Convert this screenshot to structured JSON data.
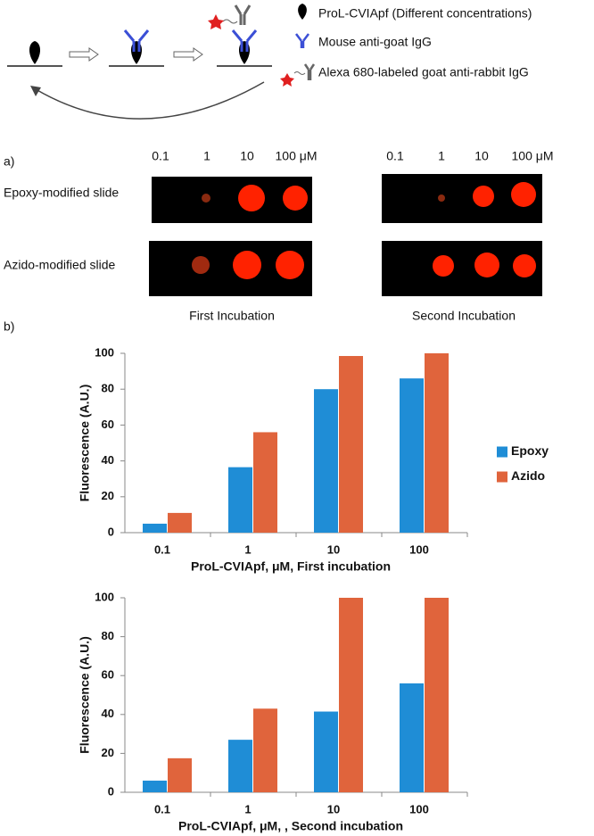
{
  "diagram": {
    "legend": [
      "ProL-CVIApf (Different concentrations)",
      "Mouse anti-goat IgG",
      "Alexa 680-labeled goat anti-rabbit IgG"
    ]
  },
  "panel_a": {
    "label": "a)",
    "first_concentrations": [
      "0.1",
      "1",
      "10",
      "100 μM"
    ],
    "second_concentrations": [
      "0.1",
      "1",
      "10",
      "100 μM"
    ],
    "rows": [
      "Epoxy-modified slide",
      "Azido-modified slide"
    ],
    "columns": [
      "First Incubation",
      "Second Incubation"
    ]
  },
  "panel_b": {
    "label": "b)"
  },
  "chart_data": [
    {
      "type": "bar",
      "xlabel": "ProL-CVIApf, μM, First incubation",
      "ylabel": "Fluorescence  (A.U.)",
      "categories": [
        "0.1",
        "1",
        "10",
        "100"
      ],
      "series": [
        {
          "name": "Epoxy",
          "color": "#1f8dd6",
          "values": [
            5,
            36.5,
            80,
            86
          ]
        },
        {
          "name": "Azido",
          "color": "#e0643c",
          "values": [
            11,
            56,
            98.5,
            100
          ]
        }
      ],
      "ylim": [
        0,
        100
      ],
      "yticks": [
        0,
        20,
        40,
        60,
        80,
        100
      ],
      "legend": "right"
    },
    {
      "type": "bar",
      "xlabel": "ProL-CVIApf, μM, , Second incubation",
      "ylabel": "Fluorescence  (A.U.)",
      "categories": [
        "0.1",
        "1",
        "10",
        "100"
      ],
      "series": [
        {
          "name": "Epoxy",
          "color": "#1f8dd6",
          "values": [
            6,
            27,
            41.5,
            56
          ]
        },
        {
          "name": "Azido",
          "color": "#e0643c",
          "values": [
            17.5,
            43,
            100,
            100
          ]
        }
      ],
      "ylim": [
        0,
        100
      ],
      "yticks": [
        0,
        20,
        40,
        60,
        80,
        100
      ]
    }
  ]
}
